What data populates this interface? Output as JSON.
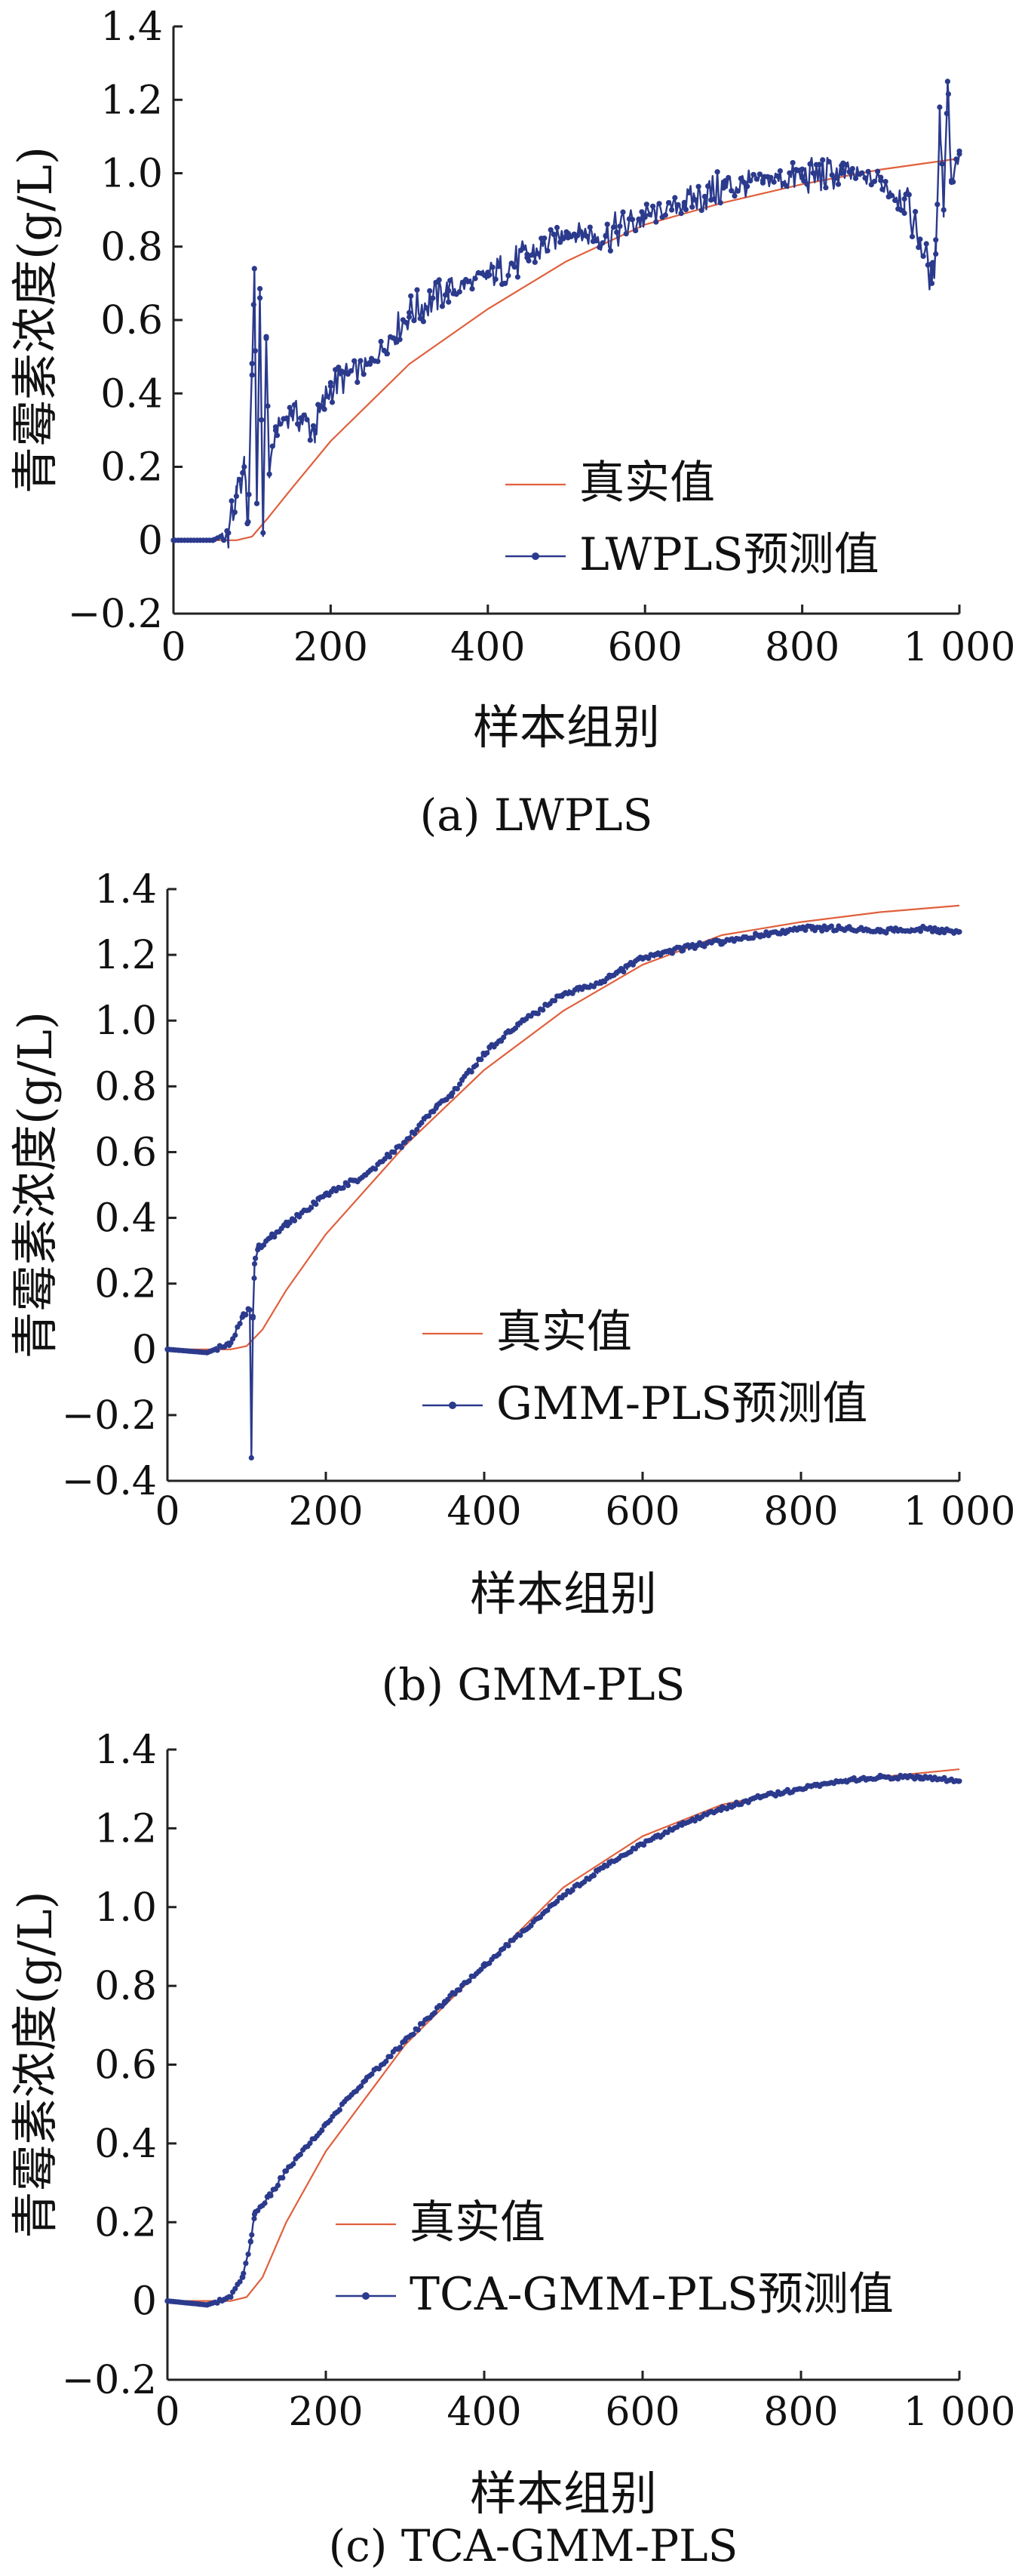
{
  "chart_data": [
    {
      "type": "line",
      "caption": "(a) LWPLS",
      "xlabel": "样本组别",
      "ylabel": "青霉素浓度(g/L)",
      "xlim": [
        0,
        1000
      ],
      "ylim": [
        -0.2,
        1.4
      ],
      "xtick_values": [
        0,
        200,
        400,
        600,
        800,
        1000
      ],
      "xtick_labels": [
        "0",
        "200",
        "400",
        "600",
        "800",
        "1 000"
      ],
      "ytick_values": [
        -0.2,
        0,
        0.2,
        0.4,
        0.6,
        0.8,
        1.0,
        1.2,
        1.4
      ],
      "ytick_labels": [
        "−0.2",
        "0",
        "0.2",
        "0.4",
        "0.6",
        "0.8",
        "1.0",
        "1.2",
        "1.4"
      ],
      "legend_position": "lower-right",
      "series": [
        {
          "name": "真实值",
          "color": "#e0603c",
          "marker": "none",
          "x": [
            0,
            50,
            80,
            100,
            120,
            150,
            200,
            300,
            400,
            500,
            600,
            700,
            800,
            900,
            1000
          ],
          "y": [
            0,
            0,
            0,
            0.01,
            0.06,
            0.14,
            0.27,
            0.48,
            0.63,
            0.76,
            0.86,
            0.92,
            0.97,
            1.01,
            1.04
          ]
        },
        {
          "name": "LWPLS预测值",
          "color": "#2b3a8c",
          "marker": "dot",
          "x": [
            0,
            50,
            70,
            80,
            90,
            95,
            100,
            103,
            106,
            110,
            114,
            118,
            122,
            130,
            150,
            180,
            200,
            250,
            300,
            350,
            400,
            450,
            500,
            550,
            600,
            650,
            700,
            750,
            800,
            850,
            900,
            930,
            950,
            960,
            965,
            970,
            975,
            980,
            985,
            990,
            1000
          ],
          "y": [
            0,
            0,
            0.02,
            0.12,
            0.2,
            0.05,
            0.45,
            0.74,
            0.1,
            0.66,
            0.02,
            0.55,
            0.18,
            0.3,
            0.35,
            0.3,
            0.42,
            0.48,
            0.62,
            0.68,
            0.72,
            0.77,
            0.84,
            0.83,
            0.88,
            0.92,
            0.96,
            0.98,
            0.99,
            1.0,
            0.98,
            0.93,
            0.82,
            0.75,
            0.7,
            0.78,
            1.18,
            0.9,
            1.25,
            0.98,
            1.06
          ]
        }
      ]
    },
    {
      "type": "line",
      "caption": "(b) GMM-PLS",
      "xlabel": "样本组别",
      "ylabel": "青霉素浓度(g/L)",
      "xlim": [
        0,
        1000
      ],
      "ylim": [
        -0.4,
        1.4
      ],
      "xtick_values": [
        0,
        200,
        400,
        600,
        800,
        1000
      ],
      "xtick_labels": [
        "0",
        "200",
        "400",
        "600",
        "800",
        "1 000"
      ],
      "ytick_values": [
        -0.4,
        -0.2,
        0,
        0.2,
        0.4,
        0.6,
        0.8,
        1.0,
        1.2,
        1.4
      ],
      "ytick_labels": [
        "−0.4",
        "−0.2",
        "0",
        "0.2",
        "0.4",
        "0.6",
        "0.8",
        "1.0",
        "1.2",
        "1.4"
      ],
      "legend_position": "lower-right",
      "series": [
        {
          "name": "真实值",
          "color": "#e0603c",
          "marker": "none",
          "x": [
            0,
            50,
            80,
            100,
            120,
            150,
            200,
            300,
            400,
            500,
            600,
            700,
            800,
            900,
            1000
          ],
          "y": [
            0,
            0,
            0,
            0.01,
            0.06,
            0.18,
            0.35,
            0.62,
            0.85,
            1.03,
            1.17,
            1.26,
            1.3,
            1.33,
            1.35
          ]
        },
        {
          "name": "GMM-PLS预测值",
          "color": "#2b3a8c",
          "marker": "dot",
          "x": [
            0,
            50,
            80,
            95,
            104,
            106,
            108,
            110,
            115,
            130,
            150,
            200,
            250,
            300,
            340,
            360,
            400,
            450,
            500,
            550,
            600,
            650,
            700,
            750,
            800,
            850,
            900,
            950,
            1000
          ],
          "y": [
            0,
            -0.01,
            0.02,
            0.1,
            0.12,
            -0.33,
            0.1,
            0.26,
            0.31,
            0.34,
            0.38,
            0.47,
            0.53,
            0.63,
            0.74,
            0.78,
            0.9,
            1.0,
            1.08,
            1.12,
            1.19,
            1.22,
            1.24,
            1.26,
            1.28,
            1.28,
            1.27,
            1.28,
            1.27
          ]
        }
      ]
    },
    {
      "type": "line",
      "caption": "(c) TCA-GMM-PLS",
      "xlabel": "样本组别",
      "ylabel": "青霉素浓度(g/L)",
      "xlim": [
        0,
        1000
      ],
      "ylim": [
        -0.2,
        1.4
      ],
      "xtick_values": [
        0,
        200,
        400,
        600,
        800,
        1000
      ],
      "xtick_labels": [
        "0",
        "200",
        "400",
        "600",
        "800",
        "1 000"
      ],
      "ytick_values": [
        -0.2,
        0,
        0.2,
        0.4,
        0.6,
        0.8,
        1.0,
        1.2,
        1.4
      ],
      "ytick_labels": [
        "−0.2",
        "0",
        "0.2",
        "0.4",
        "0.6",
        "0.8",
        "1.0",
        "1.2",
        "1.4"
      ],
      "legend_position": "lower-right",
      "series": [
        {
          "name": "真实值",
          "color": "#e0603c",
          "marker": "none",
          "x": [
            0,
            50,
            80,
            100,
            120,
            150,
            200,
            300,
            400,
            500,
            600,
            700,
            800,
            900,
            1000
          ],
          "y": [
            0,
            0,
            0,
            0.01,
            0.06,
            0.2,
            0.38,
            0.65,
            0.85,
            1.05,
            1.18,
            1.26,
            1.3,
            1.33,
            1.35
          ]
        },
        {
          "name": "TCA-GMM-PLS预测值",
          "color": "#2b3a8c",
          "marker": "dot",
          "x": [
            0,
            50,
            80,
            95,
            105,
            110,
            130,
            150,
            200,
            250,
            300,
            350,
            400,
            450,
            500,
            550,
            600,
            650,
            700,
            750,
            800,
            850,
            900,
            950,
            1000
          ],
          "y": [
            0,
            -0.01,
            0.01,
            0.06,
            0.15,
            0.22,
            0.27,
            0.33,
            0.45,
            0.56,
            0.66,
            0.76,
            0.85,
            0.94,
            1.03,
            1.1,
            1.16,
            1.21,
            1.25,
            1.28,
            1.3,
            1.32,
            1.33,
            1.33,
            1.32
          ]
        }
      ]
    }
  ]
}
